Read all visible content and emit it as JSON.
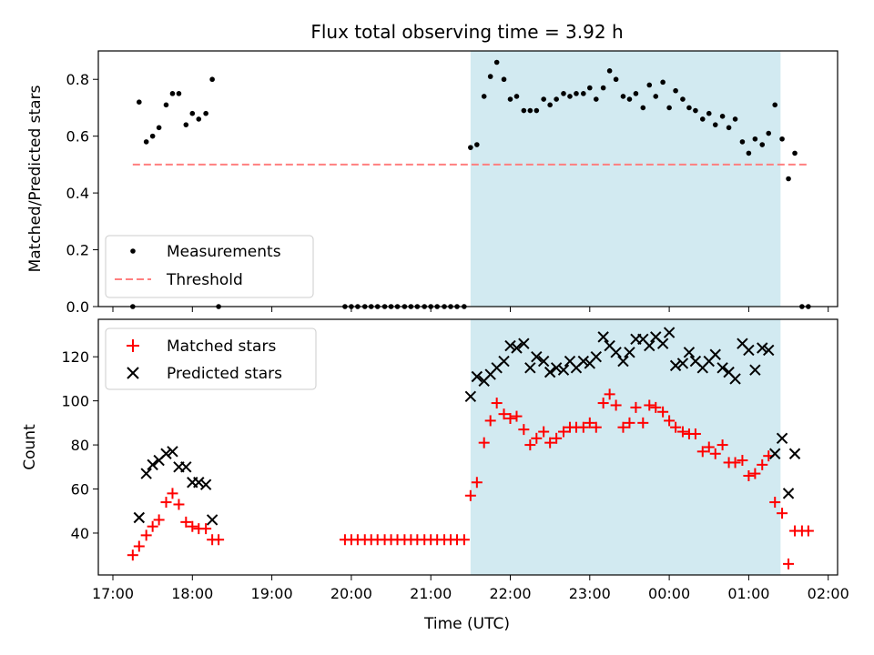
{
  "chart_data": {
    "title": "Flux total observing time = 3.92 h",
    "xlabel": "Time (UTC)",
    "xticks": [
      "17:00",
      "18:00",
      "19:00",
      "20:00",
      "21:00",
      "22:00",
      "23:00",
      "00:00",
      "01:00",
      "02:00"
    ],
    "highlight_hours": [
      21.5,
      25.4
    ],
    "colors": {
      "highlight": "#add8e6",
      "measure": "#000000",
      "threshold": "#ff7f7f",
      "matched": "#ff0000",
      "predicted": "#000000"
    },
    "top": {
      "type": "scatter",
      "ylabel": "Matched/Predicted stars",
      "ylim": [
        0,
        0.9
      ],
      "yticks": [
        "0.0",
        "0.2",
        "0.4",
        "0.6",
        "0.8"
      ],
      "legend": {
        "placement": "lower-left",
        "measurements_label": "Measurements",
        "threshold_label": "Threshold"
      },
      "threshold": {
        "x_range": [
          17.25,
          25.75
        ],
        "value": 0.5
      },
      "measurements": [
        [
          17.25,
          0.0
        ],
        [
          17.33,
          0.72
        ],
        [
          17.42,
          0.58
        ],
        [
          17.5,
          0.6
        ],
        [
          17.58,
          0.63
        ],
        [
          17.67,
          0.71
        ],
        [
          17.75,
          0.75
        ],
        [
          17.83,
          0.75
        ],
        [
          17.92,
          0.64
        ],
        [
          18.0,
          0.68
        ],
        [
          18.08,
          0.66
        ],
        [
          18.17,
          0.68
        ],
        [
          18.25,
          0.8
        ],
        [
          18.33,
          0.0
        ],
        [
          19.92,
          0.0
        ],
        [
          20.0,
          0.0
        ],
        [
          20.08,
          0.0
        ],
        [
          20.17,
          0.0
        ],
        [
          20.25,
          0.0
        ],
        [
          20.33,
          0.0
        ],
        [
          20.42,
          0.0
        ],
        [
          20.5,
          0.0
        ],
        [
          20.58,
          0.0
        ],
        [
          20.67,
          0.0
        ],
        [
          20.75,
          0.0
        ],
        [
          20.83,
          0.0
        ],
        [
          20.92,
          0.0
        ],
        [
          21.0,
          0.0
        ],
        [
          21.08,
          0.0
        ],
        [
          21.17,
          0.0
        ],
        [
          21.25,
          0.0
        ],
        [
          21.33,
          0.0
        ],
        [
          21.42,
          0.0
        ],
        [
          21.5,
          0.56
        ],
        [
          21.58,
          0.57
        ],
        [
          21.67,
          0.74
        ],
        [
          21.75,
          0.81
        ],
        [
          21.83,
          0.86
        ],
        [
          21.92,
          0.8
        ],
        [
          22.0,
          0.73
        ],
        [
          22.08,
          0.74
        ],
        [
          22.17,
          0.69
        ],
        [
          22.25,
          0.69
        ],
        [
          22.33,
          0.69
        ],
        [
          22.42,
          0.73
        ],
        [
          22.5,
          0.71
        ],
        [
          22.58,
          0.73
        ],
        [
          22.67,
          0.75
        ],
        [
          22.75,
          0.74
        ],
        [
          22.83,
          0.75
        ],
        [
          22.92,
          0.75
        ],
        [
          23.0,
          0.77
        ],
        [
          23.08,
          0.73
        ],
        [
          23.17,
          0.77
        ],
        [
          23.25,
          0.83
        ],
        [
          23.33,
          0.8
        ],
        [
          23.42,
          0.74
        ],
        [
          23.5,
          0.73
        ],
        [
          23.58,
          0.75
        ],
        [
          23.67,
          0.7
        ],
        [
          23.75,
          0.78
        ],
        [
          23.83,
          0.74
        ],
        [
          23.92,
          0.79
        ],
        [
          24.0,
          0.7
        ],
        [
          24.08,
          0.76
        ],
        [
          24.17,
          0.73
        ],
        [
          24.25,
          0.7
        ],
        [
          24.33,
          0.69
        ],
        [
          24.42,
          0.66
        ],
        [
          24.5,
          0.68
        ],
        [
          24.58,
          0.64
        ],
        [
          24.67,
          0.67
        ],
        [
          24.75,
          0.63
        ],
        [
          24.83,
          0.66
        ],
        [
          24.92,
          0.58
        ],
        [
          25.0,
          0.54
        ],
        [
          25.08,
          0.59
        ],
        [
          25.17,
          0.57
        ],
        [
          25.25,
          0.61
        ],
        [
          25.33,
          0.71
        ],
        [
          25.42,
          0.59
        ],
        [
          25.5,
          0.45
        ],
        [
          25.58,
          0.54
        ],
        [
          25.67,
          0.0
        ],
        [
          25.75,
          0.0
        ]
      ]
    },
    "bottom": {
      "type": "scatter",
      "ylabel": "Count",
      "ylim": [
        21,
        137
      ],
      "yticks": [
        "40",
        "60",
        "80",
        "100",
        "120"
      ],
      "legend": {
        "placement": "top-left",
        "matched_label": "Matched stars",
        "predicted_label": "Predicted stars"
      },
      "matched": [
        [
          17.25,
          30
        ],
        [
          17.33,
          34
        ],
        [
          17.42,
          39
        ],
        [
          17.5,
          43
        ],
        [
          17.58,
          46
        ],
        [
          17.67,
          54
        ],
        [
          17.75,
          58
        ],
        [
          17.83,
          53
        ],
        [
          17.92,
          45
        ],
        [
          18.0,
          43
        ],
        [
          18.08,
          42
        ],
        [
          18.17,
          42
        ],
        [
          18.25,
          37
        ],
        [
          18.33,
          37
        ],
        [
          19.92,
          37
        ],
        [
          20.0,
          37
        ],
        [
          20.08,
          37
        ],
        [
          20.17,
          37
        ],
        [
          20.25,
          37
        ],
        [
          20.33,
          37
        ],
        [
          20.42,
          37
        ],
        [
          20.5,
          37
        ],
        [
          20.58,
          37
        ],
        [
          20.67,
          37
        ],
        [
          20.75,
          37
        ],
        [
          20.83,
          37
        ],
        [
          20.92,
          37
        ],
        [
          21.0,
          37
        ],
        [
          21.08,
          37
        ],
        [
          21.17,
          37
        ],
        [
          21.25,
          37
        ],
        [
          21.33,
          37
        ],
        [
          21.42,
          37
        ],
        [
          21.5,
          57
        ],
        [
          21.58,
          63
        ],
        [
          21.67,
          81
        ],
        [
          21.75,
          91
        ],
        [
          21.83,
          99
        ],
        [
          21.92,
          94
        ],
        [
          22.0,
          92
        ],
        [
          22.08,
          93
        ],
        [
          22.17,
          87
        ],
        [
          22.25,
          80
        ],
        [
          22.33,
          83
        ],
        [
          22.42,
          86
        ],
        [
          22.5,
          81
        ],
        [
          22.58,
          83
        ],
        [
          22.67,
          86
        ],
        [
          22.75,
          88
        ],
        [
          22.83,
          88
        ],
        [
          22.92,
          88
        ],
        [
          23.0,
          90
        ],
        [
          23.08,
          88
        ],
        [
          23.17,
          99
        ],
        [
          23.25,
          103
        ],
        [
          23.33,
          98
        ],
        [
          23.42,
          88
        ],
        [
          23.5,
          90
        ],
        [
          23.58,
          97
        ],
        [
          23.67,
          90
        ],
        [
          23.75,
          98
        ],
        [
          23.83,
          97
        ],
        [
          23.92,
          95
        ],
        [
          24.0,
          91
        ],
        [
          24.08,
          88
        ],
        [
          24.17,
          86
        ],
        [
          24.25,
          85
        ],
        [
          24.33,
          85
        ],
        [
          24.42,
          77
        ],
        [
          24.5,
          79
        ],
        [
          24.58,
          76
        ],
        [
          24.67,
          80
        ],
        [
          24.75,
          72
        ],
        [
          24.83,
          72
        ],
        [
          24.92,
          73
        ],
        [
          25.0,
          66
        ],
        [
          25.08,
          67
        ],
        [
          25.17,
          71
        ],
        [
          25.25,
          75
        ],
        [
          25.33,
          54
        ],
        [
          25.42,
          49
        ],
        [
          25.5,
          26
        ],
        [
          25.58,
          41
        ],
        [
          25.67,
          41
        ],
        [
          25.75,
          41
        ]
      ],
      "predicted": [
        [
          17.33,
          47
        ],
        [
          17.42,
          67
        ],
        [
          17.5,
          71
        ],
        [
          17.58,
          73
        ],
        [
          17.67,
          76
        ],
        [
          17.75,
          77
        ],
        [
          17.83,
          70
        ],
        [
          17.92,
          70
        ],
        [
          18.0,
          63
        ],
        [
          18.08,
          63
        ],
        [
          18.17,
          62
        ],
        [
          18.25,
          46
        ],
        [
          21.5,
          102
        ],
        [
          21.58,
          111
        ],
        [
          21.67,
          109
        ],
        [
          21.75,
          112
        ],
        [
          21.83,
          115
        ],
        [
          21.92,
          118
        ],
        [
          22.0,
          125
        ],
        [
          22.08,
          124
        ],
        [
          22.17,
          126
        ],
        [
          22.25,
          115
        ],
        [
          22.33,
          120
        ],
        [
          22.42,
          118
        ],
        [
          22.5,
          113
        ],
        [
          22.58,
          115
        ],
        [
          22.67,
          114
        ],
        [
          22.75,
          118
        ],
        [
          22.83,
          115
        ],
        [
          22.92,
          118
        ],
        [
          23.0,
          117
        ],
        [
          23.08,
          120
        ],
        [
          23.17,
          129
        ],
        [
          23.25,
          125
        ],
        [
          23.33,
          122
        ],
        [
          23.42,
          118
        ],
        [
          23.5,
          122
        ],
        [
          23.58,
          128
        ],
        [
          23.67,
          128
        ],
        [
          23.75,
          125
        ],
        [
          23.83,
          129
        ],
        [
          23.92,
          126
        ],
        [
          24.0,
          131
        ],
        [
          24.08,
          116
        ],
        [
          24.17,
          117
        ],
        [
          24.25,
          122
        ],
        [
          24.33,
          118
        ],
        [
          24.42,
          115
        ],
        [
          24.5,
          118
        ],
        [
          24.58,
          121
        ],
        [
          24.67,
          115
        ],
        [
          24.75,
          113
        ],
        [
          24.83,
          110
        ],
        [
          24.92,
          126
        ],
        [
          25.0,
          123
        ],
        [
          25.08,
          114
        ],
        [
          25.17,
          124
        ],
        [
          25.25,
          123
        ],
        [
          25.33,
          76
        ],
        [
          25.42,
          83
        ],
        [
          25.5,
          58
        ],
        [
          25.58,
          76
        ]
      ]
    }
  }
}
